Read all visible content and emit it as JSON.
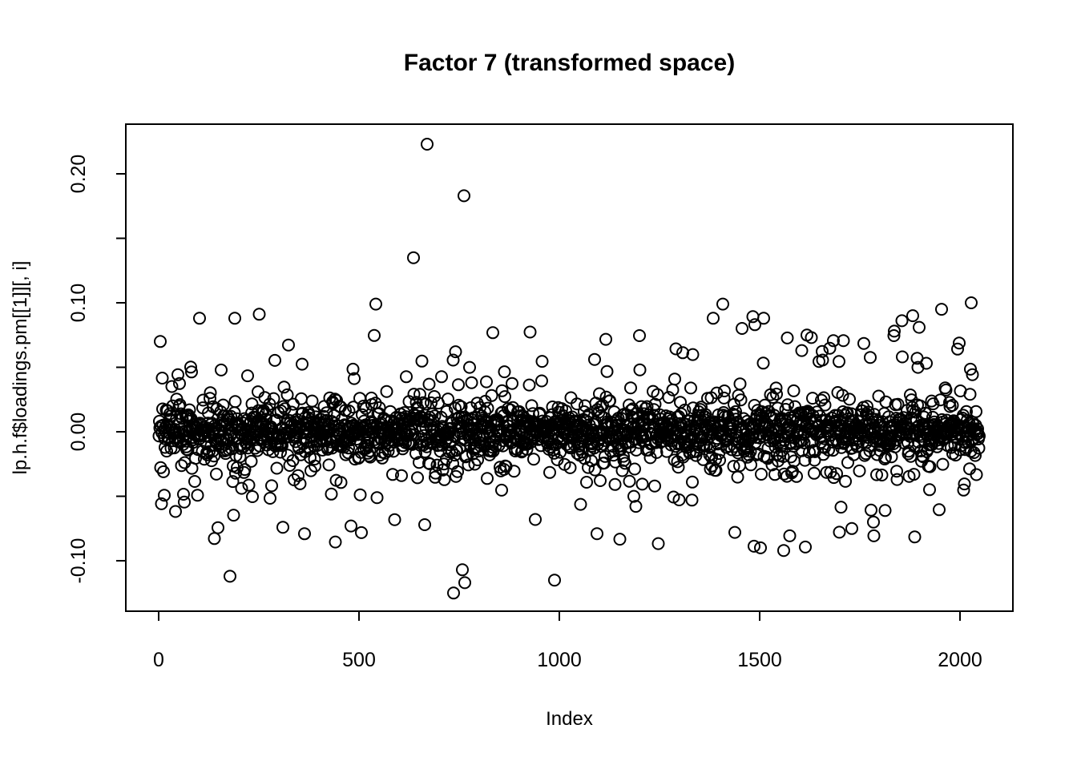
{
  "chart_data": {
    "type": "scatter",
    "title": "Factor 7 (transformed space)",
    "xlabel": "Index",
    "ylabel": "lp.h.f$loadings.pm[[1]][, i]",
    "n_points": 2048,
    "xlim": [
      -82,
      2132
    ],
    "ylim": [
      -0.1391,
      0.2385
    ],
    "grid": false,
    "legend": null,
    "axis_color": "#000000",
    "background_color": "#ffffff",
    "x_ticks": [
      {
        "v": 0,
        "label": "0"
      },
      {
        "v": 500,
        "label": "500"
      },
      {
        "v": 1000,
        "label": "1000"
      },
      {
        "v": 1500,
        "label": "1500"
      },
      {
        "v": 2000,
        "label": "2000"
      }
    ],
    "y_ticks": [
      {
        "v": 0.2,
        "label": "0.20"
      },
      {
        "v": 0.15,
        "label": ""
      },
      {
        "v": 0.1,
        "label": "0.10"
      },
      {
        "v": 0.05,
        "label": ""
      },
      {
        "v": 0.0,
        "label": "0.00"
      },
      {
        "v": -0.05,
        "label": ""
      },
      {
        "v": -0.1,
        "label": "-0.10"
      }
    ],
    "marker": {
      "shape": "open-circle",
      "radius_px": 7,
      "stroke_width_px": 2,
      "color": "#000000"
    },
    "bulk_distribution": {
      "seed": 42,
      "center": 0,
      "x_start": 1,
      "x_end": 2048,
      "x_step": 1,
      "clamp_abs": 0.093,
      "mixture": [
        {
          "weight": 0.62,
          "type": "normal",
          "sd": 0.0085
        },
        {
          "weight": 0.22,
          "type": "normal",
          "sd": 0.017
        },
        {
          "weight": 0.1,
          "type": "normal",
          "sd": 0.028
        },
        {
          "weight": 0.045,
          "type": "normal",
          "sd": 0.04
        },
        {
          "weight": 0.015,
          "type": "uniform_tail",
          "min_abs": 0.048,
          "max_abs": 0.092
        }
      ]
    },
    "outliers": [
      [
        102,
        0.088
      ],
      [
        178,
        0.077
      ],
      [
        190,
        0.088
      ],
      [
        178,
        -0.112
      ],
      [
        310,
        -0.074
      ],
      [
        480,
        -0.073
      ],
      [
        542,
        0.099
      ],
      [
        636,
        0.135
      ],
      [
        664,
        -0.072
      ],
      [
        670,
        0.223
      ],
      [
        736,
        -0.125
      ],
      [
        758,
        -0.107
      ],
      [
        762,
        0.183
      ],
      [
        764,
        -0.117
      ],
      [
        940,
        -0.068
      ],
      [
        988,
        -0.115
      ],
      [
        1094,
        -0.079
      ],
      [
        1384,
        0.088
      ],
      [
        1408,
        0.099
      ],
      [
        1438,
        -0.078
      ],
      [
        1502,
        -0.09
      ],
      [
        1510,
        0.088
      ],
      [
        1560,
        -0.092
      ],
      [
        1618,
        0.075
      ],
      [
        1730,
        -0.075
      ],
      [
        1784,
        -0.07
      ],
      [
        1836,
        0.078
      ],
      [
        1882,
        0.09
      ],
      [
        1898,
        0.081
      ],
      [
        1954,
        0.095
      ],
      [
        2028,
        0.1
      ]
    ]
  }
}
